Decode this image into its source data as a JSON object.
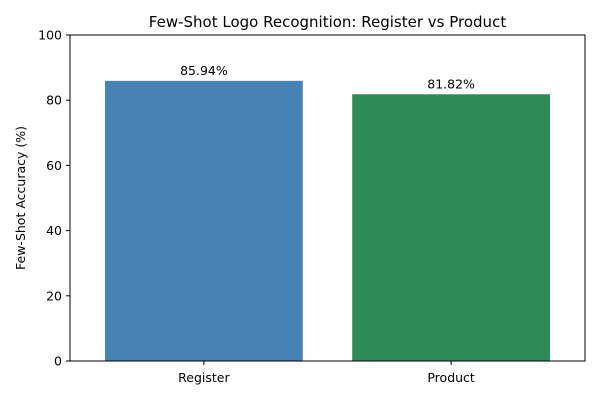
{
  "chart_data": {
    "type": "bar",
    "title": "Few-Shot Logo Recognition: Register vs Product",
    "xlabel": "",
    "ylabel": "Few-Shot Accuracy (%)",
    "categories": [
      "Register",
      "Product"
    ],
    "values": [
      85.94,
      81.82
    ],
    "data_labels": [
      "85.94%",
      "81.82%"
    ],
    "colors": [
      "#4682b4",
      "#2e8b57"
    ],
    "ylim": [
      0,
      100
    ],
    "yticks": [
      0,
      20,
      40,
      60,
      80,
      100
    ],
    "grid": false,
    "legend": "none"
  }
}
